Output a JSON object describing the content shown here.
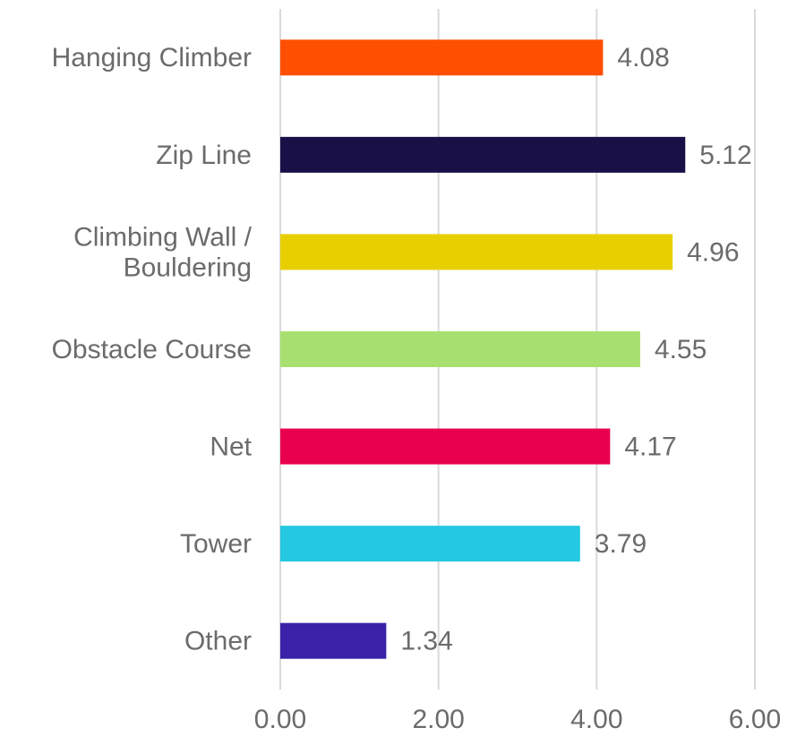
{
  "chart_data": {
    "type": "hbar",
    "categories": [
      "Hanging Climber",
      "Zip Line",
      "Climbing Wall / Bouldering",
      "Obstacle Course",
      "Net",
      "Tower",
      "Other"
    ],
    "values": [
      4.08,
      5.12,
      4.96,
      4.55,
      4.17,
      3.79,
      1.34
    ],
    "colors": [
      "#ff4f00",
      "#1a1048",
      "#e8d000",
      "#a8e070",
      "#e8004f",
      "#24c8e0",
      "#3a22a8"
    ],
    "xlim": [
      0,
      6
    ],
    "xticks": [
      {
        "value": 0,
        "label": "0.00"
      },
      {
        "value": 2,
        "label": "2.00"
      },
      {
        "value": 4,
        "label": "4.00"
      },
      {
        "value": 6,
        "label": "6.00"
      }
    ],
    "grid": true
  }
}
